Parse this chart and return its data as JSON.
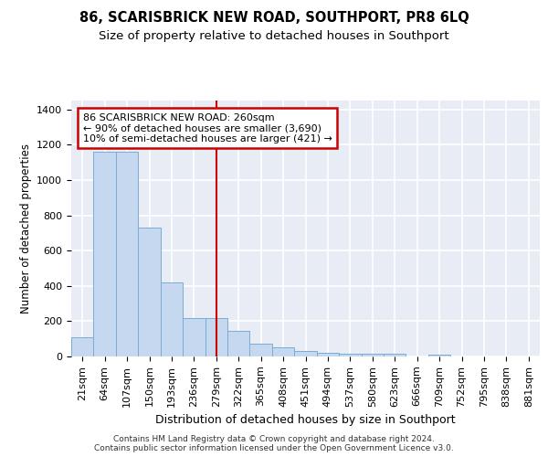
{
  "title": "86, SCARISBRICK NEW ROAD, SOUTHPORT, PR8 6LQ",
  "subtitle": "Size of property relative to detached houses in Southport",
  "xlabel": "Distribution of detached houses by size in Southport",
  "ylabel": "Number of detached properties",
  "categories": [
    "21sqm",
    "64sqm",
    "107sqm",
    "150sqm",
    "193sqm",
    "236sqm",
    "279sqm",
    "322sqm",
    "365sqm",
    "408sqm",
    "451sqm",
    "494sqm",
    "537sqm",
    "580sqm",
    "623sqm",
    "666sqm",
    "709sqm",
    "752sqm",
    "795sqm",
    "838sqm",
    "881sqm"
  ],
  "values": [
    107,
    1160,
    1160,
    730,
    420,
    220,
    220,
    145,
    70,
    50,
    30,
    20,
    15,
    15,
    15,
    0,
    10,
    0,
    0,
    0,
    0
  ],
  "bar_color": "#c5d8f0",
  "bar_edge_color": "#7aadd4",
  "background_color": "#e8ecf5",
  "grid_color": "#ffffff",
  "annotation_box_text": "86 SCARISBRICK NEW ROAD: 260sqm\n← 90% of detached houses are smaller (3,690)\n10% of semi-detached houses are larger (421) →",
  "annotation_box_color": "#cc0000",
  "vline_x_index": 6,
  "vline_color": "#cc0000",
  "ylim": [
    0,
    1450
  ],
  "yticks": [
    0,
    200,
    400,
    600,
    800,
    1000,
    1200,
    1400
  ],
  "footer": "Contains HM Land Registry data © Crown copyright and database right 2024.\nContains public sector information licensed under the Open Government Licence v3.0.",
  "title_fontsize": 10.5,
  "subtitle_fontsize": 9.5,
  "xlabel_fontsize": 9,
  "ylabel_fontsize": 8.5,
  "tick_fontsize": 8,
  "ann_fontsize": 8
}
